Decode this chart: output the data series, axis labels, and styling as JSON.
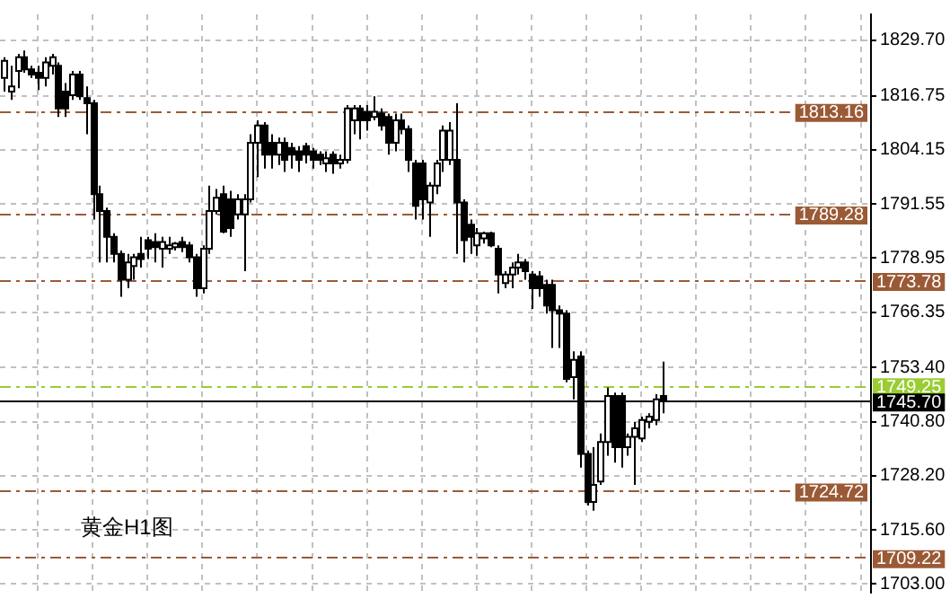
{
  "chart_data": {
    "type": "candlestick",
    "categories": [
      null,
      null,
      null,
      null,
      null,
      null,
      null,
      null,
      null,
      null,
      null,
      null,
      null,
      null,
      null,
      null,
      null,
      null,
      null,
      null,
      null,
      null,
      null,
      null,
      null,
      null,
      null,
      null,
      null,
      null,
      null,
      null,
      null,
      null,
      null,
      null,
      null,
      null,
      null,
      null,
      null,
      null,
      null,
      null,
      null,
      null,
      null,
      null,
      null,
      null,
      null,
      null,
      null,
      null,
      null,
      null,
      null,
      null,
      null,
      null,
      null,
      null,
      null,
      null,
      null,
      null,
      null,
      null,
      null,
      null,
      null,
      null,
      null,
      null,
      null,
      null,
      null,
      null,
      null,
      null,
      null,
      null,
      null,
      null,
      null,
      null,
      null,
      null,
      null,
      null,
      null,
      null,
      null,
      null,
      null,
      null,
      null,
      null,
      null,
      null,
      null,
      null,
      null,
      null,
      null,
      null,
      null,
      null,
      null,
      null,
      null,
      null,
      null,
      null,
      null,
      null,
      null,
      null,
      null,
      null,
      null,
      null,
      null,
      null,
      null,
      null,
      null
    ],
    "series": [
      {
        "color": "#000000",
        "colors": [
          "#ffffff",
          "#ffffff",
          "#ffffff",
          "#000000",
          "#000000",
          "#000000",
          "#ffffff",
          "#ffffff",
          "#000000",
          "#000000",
          "#ffffff",
          "#000000",
          "#000000",
          "#000000",
          "#000000",
          "#000000",
          "#000000",
          "#000000",
          "#ffffff",
          "#ffffff",
          "#000000",
          "#000000",
          "#000000",
          "#ffffff",
          "#ffffff",
          "#ffffff",
          "#000000",
          "#000000",
          "#000000",
          "#ffffff",
          "#ffffff",
          "#ffffff",
          "#000000",
          "#000000",
          "#ffffff",
          "#ffffff",
          "#ffffff",
          "#ffffff",
          "#000000",
          "#000000",
          "#ffffff",
          "#000000",
          "#000000",
          "#000000",
          "#000000",
          "#000000",
          "#000000",
          "#ffffff",
          "#000000",
          "#ffffff",
          "#ffffff",
          "#ffffff",
          "#000000",
          "#000000",
          "#ffffff",
          "#000000",
          "#000000",
          "#ffffff",
          "#000000",
          "#000000",
          "#000000",
          "#000000",
          "#ffffff",
          "#ffffff",
          "#ffffff",
          "#ffffff",
          "#000000",
          "#000000",
          "#000000",
          "#ffffff",
          "#ffffff",
          "#000000",
          "#000000",
          "#ffffff",
          "#ffffff",
          "#ffffff",
          "#000000",
          "#000000",
          "#000000",
          "#000000",
          "#000000",
          "#000000",
          "#000000",
          "#ffffff",
          "#000000",
          "#000000",
          "#ffffff",
          "#ffffff",
          "#ffffff",
          "#000000",
          "#000000",
          "#ffffff",
          "#ffffff",
          "#ffffff",
          "#ffffff",
          "#ffffff",
          "#000000",
          null,
          null,
          null,
          null,
          null,
          null,
          null,
          null,
          null,
          null,
          null,
          null,
          null,
          null,
          null,
          null,
          null,
          null,
          null,
          null,
          null,
          null,
          null,
          null,
          null,
          null,
          null,
          null,
          null,
          null
        ],
        "ohlc": [
          [
            1820.9,
            1825.7,
            1817.7,
            1824.9
          ],
          [
            1817.7,
            1823.7,
            1815.8,
            1818.9
          ],
          [
            1822.5,
            1826.5,
            1818.5,
            1825.7
          ],
          [
            1825.7,
            1827.3,
            1822.1,
            1822.9
          ],
          [
            1822.9,
            1823.7,
            1820.9,
            1821.7
          ],
          [
            1822.1,
            1823.7,
            1818.1,
            1820.9
          ],
          [
            1820.9,
            1825.7,
            1818.9,
            1824.5
          ],
          [
            1823.7,
            1826.5,
            1821.7,
            1825.7
          ],
          [
            1823.7,
            1824.5,
            1811.8,
            1813.8
          ],
          [
            1817.7,
            1819.7,
            1811.8,
            1813.8
          ],
          [
            1816.9,
            1822.5,
            1815.8,
            1821.7
          ],
          [
            1821.7,
            1822.5,
            1815.8,
            1816.6
          ],
          [
            1816.2,
            1818.9,
            1807.8,
            1815.0
          ],
          [
            1815.0,
            1815.8,
            1787.9,
            1793.8
          ],
          [
            1793.8,
            1795.8,
            1777.9,
            1789.9
          ],
          [
            1789.9,
            1790.7,
            1777.9,
            1783.9
          ],
          [
            1783.9,
            1784.7,
            1777.9,
            1779.9
          ],
          [
            1779.9,
            1780.7,
            1769.9,
            1773.9
          ],
          [
            1773.9,
            1779.9,
            1771.9,
            1777.9
          ],
          [
            1777.1,
            1779.9,
            1773.9,
            1779.1
          ],
          [
            1779.9,
            1783.9,
            1776.7,
            1778.7
          ],
          [
            1783.1,
            1783.9,
            1778.7,
            1781.1
          ],
          [
            1782.7,
            1784.7,
            1777.9,
            1781.5
          ],
          [
            1781.1,
            1783.9,
            1776.7,
            1782.7
          ],
          [
            1781.1,
            1783.9,
            1779.9,
            1781.9
          ],
          [
            1781.5,
            1782.7,
            1780.7,
            1782.3
          ],
          [
            1782.7,
            1783.9,
            1780.3,
            1781.5
          ],
          [
            1781.9,
            1782.7,
            1777.9,
            1779.1
          ],
          [
            1779.1,
            1779.9,
            1769.9,
            1771.9
          ],
          [
            1771.9,
            1781.9,
            1770.7,
            1781.1
          ],
          [
            1781.1,
            1795.8,
            1779.9,
            1789.9
          ],
          [
            1789.9,
            1795.0,
            1789.1,
            1793.0
          ],
          [
            1793.8,
            1795.8,
            1784.7,
            1785.1
          ],
          [
            1792.6,
            1794.6,
            1783.9,
            1785.9
          ],
          [
            1789.1,
            1793.8,
            1787.9,
            1792.6
          ],
          [
            1789.1,
            1793.8,
            1775.9,
            1792.6
          ],
          [
            1792.6,
            1807.8,
            1791.9,
            1805.8
          ],
          [
            1805.8,
            1811.0,
            1797.8,
            1809.8
          ],
          [
            1809.8,
            1810.6,
            1799.8,
            1803.0
          ],
          [
            1805.8,
            1807.8,
            1799.8,
            1803.0
          ],
          [
            1803.0,
            1807.0,
            1800.6,
            1805.8
          ],
          [
            1805.8,
            1807.0,
            1799.0,
            1801.8
          ],
          [
            1804.6,
            1805.8,
            1799.8,
            1803.0
          ],
          [
            1803.8,
            1805.0,
            1799.0,
            1801.8
          ],
          [
            1805.0,
            1805.8,
            1801.0,
            1803.0
          ],
          [
            1803.8,
            1804.6,
            1799.8,
            1801.8
          ],
          [
            1803.0,
            1803.8,
            1800.6,
            1801.8
          ],
          [
            1801.0,
            1803.8,
            1799.0,
            1802.2
          ],
          [
            1803.0,
            1803.8,
            1798.6,
            1801.0
          ],
          [
            1801.0,
            1803.0,
            1799.8,
            1801.8
          ],
          [
            1801.8,
            1814.6,
            1801.0,
            1813.8
          ],
          [
            1811.0,
            1814.6,
            1807.8,
            1813.8
          ],
          [
            1813.8,
            1814.6,
            1806.6,
            1811.0
          ],
          [
            1813.0,
            1814.6,
            1808.6,
            1811.0
          ],
          [
            1811.8,
            1816.6,
            1811.0,
            1813.0
          ],
          [
            1812.6,
            1813.8,
            1808.6,
            1809.8
          ],
          [
            1811.8,
            1812.6,
            1803.0,
            1805.8
          ],
          [
            1805.8,
            1812.6,
            1803.8,
            1811.0
          ],
          [
            1811.0,
            1812.6,
            1807.8,
            1809.0
          ],
          [
            1809.0,
            1809.8,
            1799.0,
            1801.8
          ],
          [
            1801.0,
            1801.8,
            1787.9,
            1791.1
          ],
          [
            1801.0,
            1801.8,
            1787.9,
            1792.6
          ],
          [
            1791.9,
            1796.6,
            1783.9,
            1795.8
          ],
          [
            1795.8,
            1801.8,
            1793.8,
            1801.0
          ],
          [
            1801.8,
            1809.8,
            1799.0,
            1808.6
          ],
          [
            1801.8,
            1810.6,
            1800.6,
            1808.6
          ],
          [
            1801.8,
            1815.0,
            1779.9,
            1791.9
          ],
          [
            1791.9,
            1792.6,
            1777.9,
            1783.1
          ],
          [
            1786.7,
            1787.9,
            1779.9,
            1783.9
          ],
          [
            1781.9,
            1785.9,
            1779.5,
            1784.7
          ],
          [
            1783.5,
            1785.1,
            1782.3,
            1784.7
          ],
          [
            1784.7,
            1785.1,
            1781.5,
            1781.9
          ],
          [
            1781.1,
            1781.9,
            1770.7,
            1775.1
          ],
          [
            1773.1,
            1775.9,
            1771.9,
            1775.1
          ],
          [
            1775.1,
            1777.9,
            1771.9,
            1776.7
          ],
          [
            1776.7,
            1779.9,
            1775.1,
            1777.9
          ],
          [
            1777.9,
            1778.7,
            1773.9,
            1775.9
          ],
          [
            1775.1,
            1775.9,
            1767.1,
            1771.9
          ],
          [
            1774.7,
            1775.9,
            1769.9,
            1771.9
          ],
          [
            1772.7,
            1773.9,
            1766.0,
            1767.9
          ],
          [
            1772.7,
            1773.9,
            1758.0,
            1766.8
          ],
          [
            1766.8,
            1767.9,
            1758.0,
            1766.0
          ],
          [
            1766.0,
            1766.8,
            1750.0,
            1750.8
          ],
          [
            1751.2,
            1757.2,
            1746.0,
            1755.2
          ],
          [
            1756.0,
            1757.2,
            1730.1,
            1733.3
          ],
          [
            1733.3,
            1734.1,
            1721.3,
            1722.1
          ],
          [
            1722.1,
            1734.9,
            1720.1,
            1726.1
          ],
          [
            1726.9,
            1738.1,
            1726.1,
            1736.1
          ],
          [
            1736.1,
            1748.8,
            1732.9,
            1746.8
          ],
          [
            1746.8,
            1747.6,
            1731.3,
            1734.9
          ],
          [
            1746.8,
            1747.6,
            1730.1,
            1734.9
          ],
          [
            1734.9,
            1738.1,
            1732.9,
            1737.3
          ],
          [
            1737.3,
            1740.8,
            1726.1,
            1739.3
          ],
          [
            1736.9,
            1742.0,
            1736.1,
            1741.2
          ],
          [
            1740.8,
            1742.8,
            1739.3,
            1742.0
          ],
          [
            1741.2,
            1747.2,
            1740.0,
            1746.0
          ],
          [
            1746.8,
            1754.8,
            1742.8,
            1745.7
          ],
          null,
          null,
          null,
          null,
          null,
          null,
          null,
          null,
          null,
          null,
          null,
          null,
          null,
          null,
          null,
          null,
          null,
          null,
          null,
          null,
          null,
          null,
          null,
          null,
          null,
          null,
          null,
          null,
          null,
          null
        ]
      }
    ],
    "ylim": [
      1701.0,
      1835.7
    ],
    "yticks": [
      {
        "value": 1703.0,
        "label": "1703.00"
      },
      {
        "value": 1715.6,
        "label": "1715.60"
      },
      {
        "value": 1728.2,
        "label": "1728.20"
      },
      {
        "value": 1740.8,
        "label": "1740.80"
      },
      {
        "value": 1753.4,
        "label": "1753.40"
      },
      1766.35,
      1778.95,
      1791.55,
      1804.15,
      1816.75,
      {
        "value": 1829.7,
        "label": "1829.70"
      }
    ],
    "ref_lines": [
      {
        "axis": "y",
        "value": 1813.16,
        "label": "1813.16",
        "color": "#9b5a36",
        "line_style": "dashed"
      },
      {
        "axis": "y",
        "value": 1789.28,
        "label": "1789.28",
        "color": "#9b5a36",
        "line_style": "dashed"
      },
      {
        "axis": "y",
        "value": 1773.78,
        "label": "1773.78",
        "color": "#9b5a36",
        "line_style": "dashed"
      },
      {
        "axis": "y",
        "value": 1749.25,
        "label": "1749.25",
        "color": "#9acd32",
        "line_style": "dashed"
      },
      {
        "axis": "y",
        "value": 1745.7,
        "label": "1745.70",
        "color": "#000000",
        "line_style": "solid"
      },
      {
        "axis": "y",
        "value": 1724.72,
        "label": "1724.72",
        "color": "#9b5a36",
        "line_style": "dashed"
      },
      {
        "axis": "y",
        "value": 1709.22,
        "label": "1709.22",
        "color": "#9b5a36",
        "line_style": "dashed"
      }
    ],
    "annotations": [
      "黄金H1图"
    ],
    "grid": true,
    "legend": false,
    "tick_labels": "y"
  }
}
